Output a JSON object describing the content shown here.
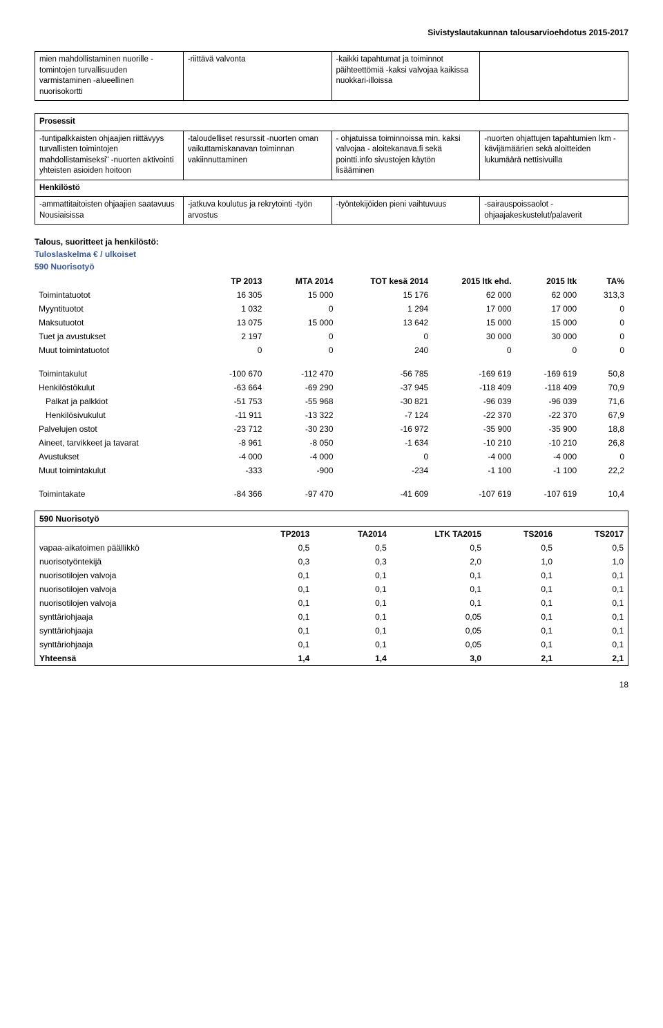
{
  "header": "Sivistyslautakunnan talousarvioehdotus 2015-2017",
  "grid1": {
    "rows": [
      [
        "mien mahdollistaminen nuorille\n-tomintojen turvallisuuden varmistaminen\n-alueellinen nuorisokortti",
        "-riittävä valvonta",
        "-kaikki tapahtumat ja toiminnot päihteettömiä\n-kaksi valvojaa kaikissa nuokkari-illoissa",
        ""
      ]
    ]
  },
  "grid2": {
    "section_prosessit": "Prosessit",
    "row_prosessit": [
      "-tuntipalkkaisten ohjaajien riittävyys turvallisten toimintojen mahdollistamiseksi\"\n-nuorten aktivointi yhteisten asioiden hoitoon",
      "-taloudelliset resurssit\n-nuorten oman vaikuttamiskanavan toiminnan vakiinnuttaminen",
      "-   ohjatuissa toiminnoissa min. kaksi valvojaa\n-   aloitekanava.fi sekä pointti.info sivustojen käytön lisääminen",
      "-nuorten ohjattujen tapahtumien lkm\n-kävijämäärien sekä aloitteiden lukumäärä nettisivuilla"
    ],
    "section_henkilosto": "Henkilöstö",
    "row_henkilosto": [
      "-ammattitaitoisten ohjaajien saatavuus Nousiaisissa",
      "-jatkuva koulutus ja rekrytointi\n-työn arvostus",
      "-työntekijöiden pieni vaihtuvuus",
      "-sairauspoissaolot\n-ohjaajakeskustelut/palaverit"
    ]
  },
  "talous_title": "Talous, suoritteet ja henkilöstö:",
  "tulos_title": "Tuloslaskelma € / ulkoiset",
  "tulos_sub": "590 Nuorisotyö",
  "fin_headers": [
    "",
    "TP 2013",
    "MTA 2014",
    "TOT kesä 2014",
    "2015 ltk ehd.",
    "2015 ltk",
    "TA%"
  ],
  "fin_rows_a": [
    [
      "Toimintatuotot",
      "16 305",
      "15 000",
      "15 176",
      "62 000",
      "62 000",
      "313,3"
    ],
    [
      "Myyntituotot",
      "1 032",
      "0",
      "1 294",
      "17 000",
      "17 000",
      "0"
    ],
    [
      "Maksutuotot",
      "13 075",
      "15 000",
      "13 642",
      "15 000",
      "15 000",
      "0"
    ],
    [
      "Tuet ja avustukset",
      "2 197",
      "0",
      "0",
      "30 000",
      "30 000",
      "0"
    ],
    [
      "Muut toimintatuotot",
      "0",
      "0",
      "240",
      "0",
      "0",
      "0"
    ]
  ],
  "fin_rows_b": [
    [
      "Toimintakulut",
      "-100 670",
      "-112 470",
      "-56 785",
      "-169 619",
      "-169 619",
      "50,8"
    ],
    [
      "Henkilöstökulut",
      "-63 664",
      "-69 290",
      "-37 945",
      "-118 409",
      "-118 409",
      "70,9"
    ],
    [
      "Palkat ja palkkiot",
      "-51 753",
      "-55 968",
      "-30 821",
      "-96 039",
      "-96 039",
      "71,6",
      true
    ],
    [
      "Henkilösivukulut",
      "-11 911",
      "-13 322",
      "-7 124",
      "-22 370",
      "-22 370",
      "67,9",
      true
    ],
    [
      "Palvelujen ostot",
      "-23 712",
      "-30 230",
      "-16 972",
      "-35 900",
      "-35 900",
      "18,8"
    ],
    [
      "Aineet, tarvikkeet ja tavarat",
      "-8 961",
      "-8 050",
      "-1 634",
      "-10 210",
      "-10 210",
      "26,8"
    ],
    [
      "Avustukset",
      "-4 000",
      "-4 000",
      "0",
      "-4 000",
      "-4 000",
      "0"
    ],
    [
      "Muut toimintakulut",
      "-333",
      "-900",
      "-234",
      "-1 100",
      "-1 100",
      "22,2"
    ]
  ],
  "fin_rows_c": [
    [
      "Toimintakate",
      "-84 366",
      "-97 470",
      "-41 609",
      "-107 619",
      "-107 619",
      "10,4"
    ]
  ],
  "staff_box_title": "590 Nuorisotyö",
  "staff_headers": [
    "",
    "TP2013",
    "TA2014",
    "LTK TA2015",
    "TS2016",
    "TS2017"
  ],
  "staff_rows": [
    [
      "vapaa-aikatoimen päällikkö",
      "0,5",
      "0,5",
      "0,5",
      "0,5",
      "0,5"
    ],
    [
      "nuorisotyöntekijä",
      "0,3",
      "0,3",
      "2,0",
      "1,0",
      "1,0"
    ],
    [
      "nuorisotilojen valvoja",
      "0,1",
      "0,1",
      "0,1",
      "0,1",
      "0,1"
    ],
    [
      "nuorisotilojen valvoja",
      "0,1",
      "0,1",
      "0,1",
      "0,1",
      "0,1"
    ],
    [
      "nuorisotilojen valvoja",
      "0,1",
      "0,1",
      "0,1",
      "0,1",
      "0,1"
    ],
    [
      "synttäriohjaaja",
      "0,1",
      "0,1",
      "0,05",
      "0,1",
      "0,1"
    ],
    [
      "synttäriohjaaja",
      "0,1",
      "0,1",
      "0,05",
      "0,1",
      "0,1"
    ],
    [
      "synttäriohjaaja",
      "0,1",
      "0,1",
      "0,05",
      "0,1",
      "0,1"
    ],
    [
      "Yhteensä",
      "1,4",
      "1,4",
      "3,0",
      "2,1",
      "2,1"
    ]
  ],
  "page_num": "18"
}
